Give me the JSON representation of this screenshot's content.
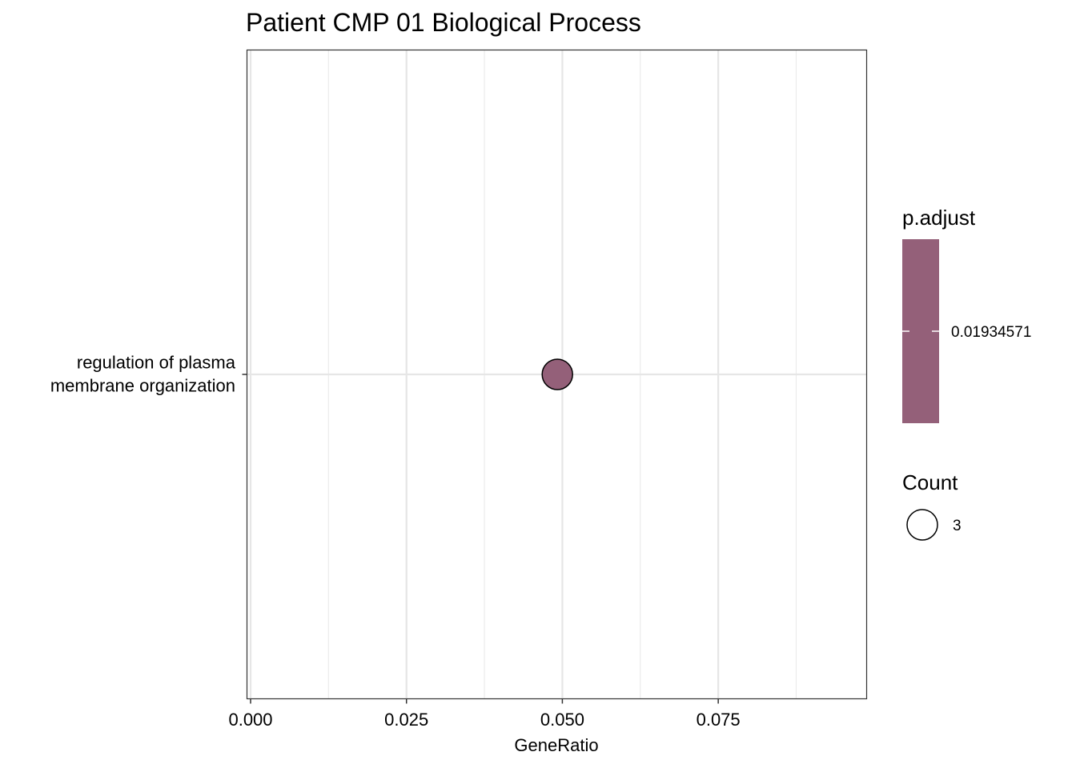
{
  "chart_data": {
    "type": "scatter",
    "title": "Patient CMP 01 Biological Process",
    "xlabel": "GeneRatio",
    "ylabel": "",
    "xlim": [
      0,
      0.0988
    ],
    "x_ticks": [
      0.0,
      0.025,
      0.05,
      0.075
    ],
    "x_tick_labels": [
      "0.000",
      "0.025",
      "0.050",
      "0.075"
    ],
    "x_minor_ticks": [
      0.0125,
      0.0375,
      0.0625,
      0.0875
    ],
    "grid": true,
    "categories": [
      "regulation of plasma membrane organization"
    ],
    "category_label_lines": [
      [
        "regulation of plasma",
        "membrane organization"
      ]
    ],
    "points": [
      {
        "category": "regulation of plasma membrane organization",
        "x": 0.0492,
        "count": 3,
        "p_adjust": 0.01934571,
        "color": "#946079"
      }
    ],
    "legend_placement": "right",
    "color_legend": {
      "title": "p.adjust",
      "color": "#946079",
      "labels": [
        "0.01934571"
      ]
    },
    "size_legend": {
      "title": "Count",
      "labels": [
        "3"
      ]
    }
  }
}
